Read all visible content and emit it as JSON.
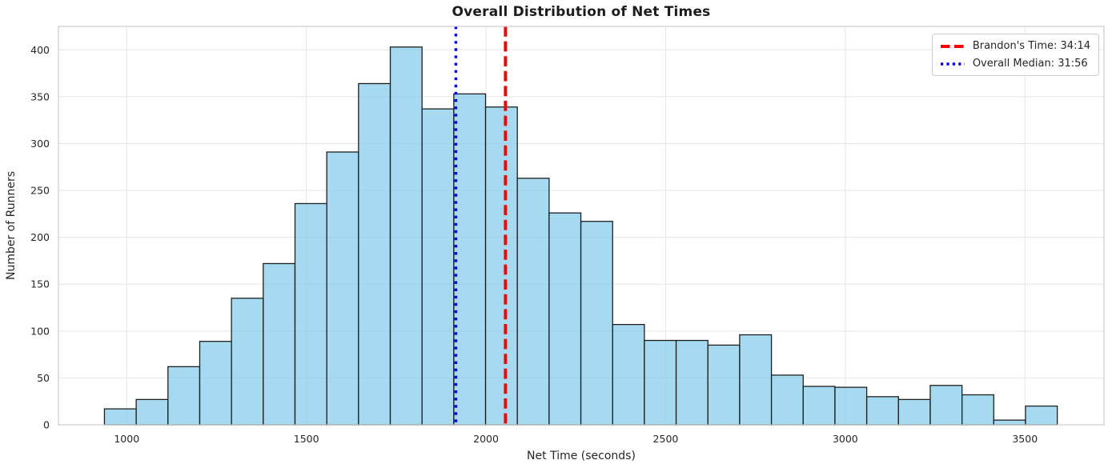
{
  "chart_data": {
    "type": "bar",
    "subtype": "histogram",
    "title": "Overall Distribution of Net Times",
    "xlabel": "Net Time (seconds)",
    "ylabel": "Number of Runners",
    "bins": {
      "start": 938,
      "width": 88.4,
      "count": 30
    },
    "counts": [
      17,
      27,
      62,
      89,
      135,
      172,
      236,
      291,
      364,
      403,
      337,
      353,
      339,
      263,
      226,
      217,
      107,
      90,
      90,
      85,
      96,
      53,
      41,
      40,
      30,
      27,
      42,
      32,
      5,
      20
    ],
    "xlim": [
      810,
      3720
    ],
    "ylim": [
      0,
      425
    ],
    "xticks": [
      1000,
      1500,
      2000,
      2500,
      3000,
      3500
    ],
    "yticks": [
      0,
      50,
      100,
      150,
      200,
      250,
      300,
      350,
      400
    ],
    "grid": true,
    "legend_position": "upper right",
    "bar_fill_color": "#87CEEB",
    "bar_fill_alpha": 0.75,
    "bar_edge_color": "#1f1f1f",
    "grid_color": "#e5e5e5",
    "spine_color": "#cccccc",
    "tick_label_color": "#262626",
    "vlines": [
      {
        "x": 2054,
        "label": "Brandon's Time: 34:14",
        "color": "#ff0000",
        "style": "dashed",
        "linewidth": 3.8
      },
      {
        "x": 1916,
        "label": "Overall Median: 31:56",
        "color": "#0000ff",
        "style": "dotted",
        "linewidth": 3.4
      }
    ]
  }
}
